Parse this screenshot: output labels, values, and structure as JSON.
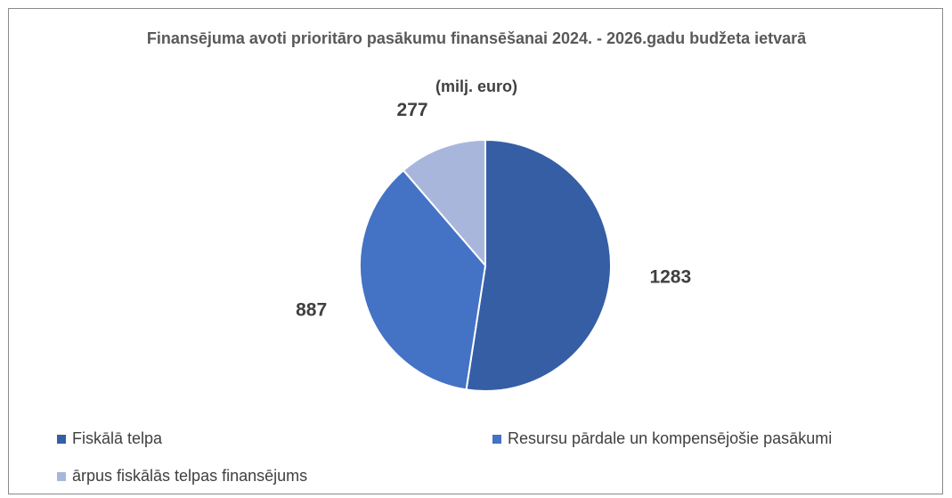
{
  "chart_data": {
    "type": "pie",
    "title": "Finansējuma avoti prioritāro pasākumu finansēšanai 2024. - 2026.gadu budžeta ietvarā",
    "subtitle": "(milj. euro)",
    "categories": [
      "Fiskālā telpa",
      "Resursu pārdale un kompensējošie pasākumi",
      "ārpus fiskālās telpas finansējums"
    ],
    "values": [
      1283,
      887,
      277
    ],
    "colors": [
      "#355ea5",
      "#4472c4",
      "#a9b6dc"
    ],
    "legend": "bottom"
  }
}
